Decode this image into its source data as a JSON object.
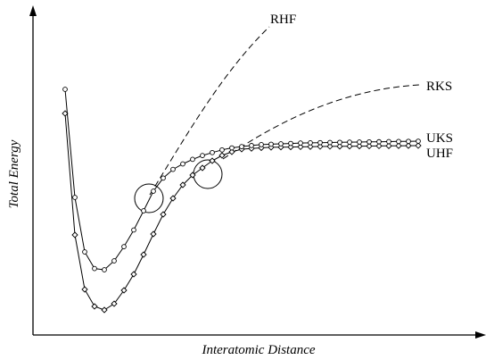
{
  "labels": {
    "rhf": "RHF",
    "rks": "RKS",
    "uks": "UKS",
    "uhf": "UHF"
  },
  "axes": {
    "x": "Interatomic Distance",
    "y": "Total Energy"
  }
}
